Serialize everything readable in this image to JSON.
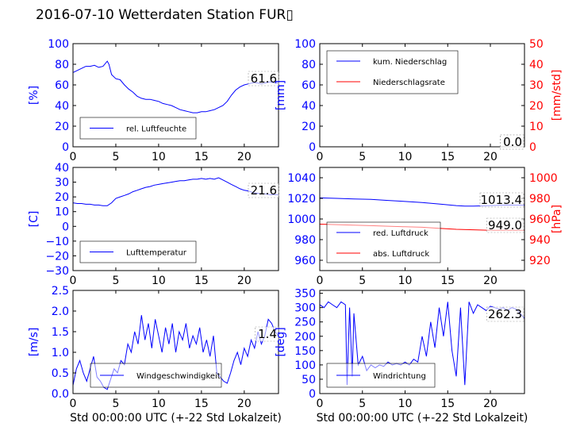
{
  "title": "2016-07-10 Wetterdaten Station FUR▯",
  "colors": {
    "primary": "#0000ff",
    "secondary": "#ff0000",
    "axis": "#000000",
    "light": "#7f7fff"
  },
  "chart_data": [
    {
      "type": "line",
      "panel": "humidity",
      "xlabel": "",
      "ylabel": "[%]",
      "xlim": [
        0,
        24
      ],
      "ylim": [
        0,
        100
      ],
      "xticks": [
        "0",
        "5",
        "10",
        "15",
        "20"
      ],
      "yticks": [
        "0",
        "20",
        "40",
        "60",
        "80",
        "100"
      ],
      "legend_position": "lower-left",
      "series": [
        {
          "name": "rel. Luftfeuchte",
          "axis": "left",
          "color": "#0000ff",
          "x": [
            0,
            0.5,
            1,
            1.5,
            2,
            2.5,
            3,
            3.5,
            4,
            4.2,
            4.5,
            5,
            5.5,
            6,
            6.5,
            7,
            7.5,
            8,
            8.5,
            9,
            9.5,
            10,
            10.5,
            11,
            11.5,
            12,
            12.5,
            13,
            13.5,
            14,
            14.5,
            15,
            15.5,
            16,
            16.5,
            17,
            17.5,
            18,
            18.5,
            19,
            19.5,
            20,
            20.5,
            21,
            21.5,
            22,
            22.5,
            23,
            23.5,
            24
          ],
          "y": [
            72,
            74,
            76,
            78,
            78,
            79,
            77,
            78,
            83,
            80,
            70,
            66,
            65,
            60,
            56,
            53,
            49,
            47,
            46,
            46,
            45,
            44,
            42,
            41,
            40,
            38,
            36,
            35,
            34,
            33,
            33,
            34,
            34,
            35,
            36,
            38,
            40,
            44,
            50,
            55,
            58,
            60,
            61,
            62,
            62,
            61,
            62,
            63,
            62,
            61.6
          ]
        }
      ],
      "annotations": [
        "61.6"
      ]
    },
    {
      "type": "line",
      "panel": "precipitation",
      "xlabel": "",
      "ylabel": "[mm]",
      "y2label": "[mm/std]",
      "xlim": [
        0,
        24
      ],
      "ylim": [
        0,
        100
      ],
      "y2lim": [
        0,
        50
      ],
      "xticks": [
        "0",
        "5",
        "10",
        "15",
        "20"
      ],
      "yticks": [
        "0",
        "20",
        "40",
        "60",
        "80",
        "100"
      ],
      "y2ticks": [
        "0",
        "10",
        "20",
        "30",
        "40",
        "50"
      ],
      "legend_position": "upper-left",
      "series": [
        {
          "name": "kum. Niederschlag",
          "axis": "left",
          "color": "#0000ff",
          "x": [
            0,
            24
          ],
          "y": [
            0,
            0
          ]
        },
        {
          "name": "Niederschlagsrate",
          "axis": "right",
          "color": "#ff0000",
          "x": [
            0,
            24
          ],
          "y": [
            0,
            0
          ]
        }
      ],
      "annotations": [
        "0.0",
        "0.0"
      ]
    },
    {
      "type": "line",
      "panel": "temperature",
      "xlabel": "",
      "ylabel": "[C]",
      "xlim": [
        0,
        24
      ],
      "ylim": [
        -30,
        40
      ],
      "xticks": [
        "0",
        "5",
        "10",
        "15",
        "20"
      ],
      "yticks": [
        "−30",
        "−20",
        "−10",
        "0",
        "10",
        "20",
        "30",
        "40"
      ],
      "legend_position": "lower-left",
      "series": [
        {
          "name": "Lufttemperatur",
          "axis": "left",
          "color": "#0000ff",
          "x": [
            0,
            0.5,
            1,
            1.5,
            2,
            2.5,
            3,
            3.5,
            4,
            4.5,
            5,
            5.5,
            6,
            6.5,
            7,
            7.5,
            8,
            8.5,
            9,
            9.5,
            10,
            10.5,
            11,
            11.5,
            12,
            12.5,
            13,
            13.5,
            14,
            14.5,
            15,
            15.5,
            16,
            16.5,
            17,
            17.5,
            18,
            18.5,
            19,
            19.5,
            20,
            20.5,
            21,
            21.5,
            22,
            22.5,
            23,
            23.5,
            24
          ],
          "y": [
            16,
            15.5,
            15.5,
            15,
            15,
            14.5,
            14.5,
            14,
            14,
            16,
            19,
            20,
            21,
            22,
            23.5,
            24.5,
            25.5,
            26.5,
            27,
            28,
            28.5,
            29,
            29.5,
            30,
            30.5,
            31,
            31,
            31.5,
            32,
            32,
            32.5,
            32,
            32.5,
            32,
            33,
            31.5,
            30,
            28.5,
            27,
            25.5,
            24.5,
            24,
            23,
            22.5,
            22,
            22,
            21.5,
            21.5,
            21.6
          ]
        }
      ],
      "annotations": [
        "21.6"
      ]
    },
    {
      "type": "line",
      "panel": "pressure",
      "xlabel": "",
      "ylabel": "",
      "y2label": "[hPa]",
      "xlim": [
        0,
        24
      ],
      "ylim": [
        950,
        1050
      ],
      "y2lim": [
        910,
        1010
      ],
      "xticks": [
        "0",
        "5",
        "10",
        "15",
        "20"
      ],
      "yticks": [
        "960",
        "980",
        "1000",
        "1020",
        "1040"
      ],
      "y2ticks": [
        "920",
        "940",
        "960",
        "980",
        "1000"
      ],
      "legend_position": "lower-left",
      "series": [
        {
          "name": "red. Luftdruck",
          "axis": "left",
          "color": "#0000ff",
          "x": [
            0,
            2,
            4,
            6,
            8,
            10,
            12,
            14,
            16,
            17,
            18,
            20,
            22,
            24
          ],
          "y": [
            1020.5,
            1020,
            1019.5,
            1019,
            1018,
            1017,
            1016,
            1014.5,
            1013,
            1012.5,
            1012.5,
            1013,
            1013.5,
            1013.4
          ]
        },
        {
          "name": "abs. Luftdruck",
          "axis": "right",
          "color": "#ff0000",
          "x": [
            0,
            2,
            4,
            6,
            8,
            10,
            12,
            14,
            16,
            18,
            20,
            22,
            24
          ],
          "y": [
            955,
            954.5,
            954,
            953.5,
            953,
            952.5,
            952,
            951,
            950,
            949.5,
            949,
            949,
            949.0
          ]
        }
      ],
      "annotations": [
        "1013.4",
        "949.0"
      ]
    },
    {
      "type": "line",
      "panel": "windspeed",
      "xlabel": "Std 00:00:00 UTC (+-22 Std Lokalzeit)",
      "ylabel": "[m/s]",
      "xlim": [
        0,
        24
      ],
      "ylim": [
        0,
        2.5
      ],
      "xticks": [
        "0",
        "5",
        "10",
        "15",
        "20"
      ],
      "yticks": [
        "0.0",
        "0.5",
        "1.0",
        "1.5",
        "2.0",
        "2.5"
      ],
      "legend_position": "lower-center",
      "series": [
        {
          "name": "Windgeschwindigkeit",
          "axis": "left",
          "color": "#0000ff",
          "x": [
            0,
            0.4,
            0.8,
            1.2,
            1.6,
            2,
            2.4,
            2.8,
            3.2,
            3.6,
            4,
            4.4,
            4.8,
            5.2,
            5.6,
            6,
            6.4,
            6.8,
            7.2,
            7.6,
            8,
            8.4,
            8.8,
            9.2,
            9.6,
            10,
            10.4,
            10.8,
            11.2,
            11.6,
            12,
            12.4,
            12.8,
            13.2,
            13.6,
            14,
            14.4,
            14.8,
            15.2,
            15.6,
            16,
            16.4,
            16.8,
            17.2,
            17.6,
            18,
            18.4,
            18.8,
            19.2,
            19.6,
            20,
            20.4,
            20.8,
            21.2,
            21.6,
            22,
            22.4,
            22.8,
            23.2,
            23.6,
            24
          ],
          "y": [
            0.2,
            0.6,
            0.8,
            0.5,
            0.3,
            0.6,
            0.9,
            0.4,
            0.3,
            0.15,
            0.1,
            0.35,
            0.6,
            0.5,
            0.8,
            0.7,
            1.2,
            1.0,
            1.5,
            1.2,
            1.9,
            1.3,
            1.7,
            1.1,
            1.8,
            1.4,
            1.0,
            1.6,
            1.2,
            1.7,
            1.0,
            1.5,
            1.3,
            1.7,
            1.1,
            1.4,
            1.2,
            1.6,
            1.0,
            1.3,
            0.9,
            1.4,
            0.5,
            0.4,
            0.3,
            0.25,
            0.5,
            0.8,
            1.0,
            0.7,
            1.1,
            0.9,
            1.3,
            1.1,
            1.5,
            1.2,
            1.4,
            1.8,
            1.7,
            1.5,
            1.4
          ]
        }
      ],
      "annotations": [
        "1.4"
      ]
    },
    {
      "type": "line",
      "panel": "winddirection",
      "xlabel": "Std 00:00:00 UTC (+-22 Std Lokalzeit)",
      "ylabel": "[deg]",
      "xlim": [
        0,
        24
      ],
      "ylim": [
        0,
        360
      ],
      "xticks": [
        "0",
        "5",
        "10",
        "15",
        "20"
      ],
      "yticks": [
        "0",
        "50",
        "100",
        "150",
        "200",
        "250",
        "300",
        "350"
      ],
      "legend_position": "lower-left",
      "series": [
        {
          "name": "Windrichtung",
          "axis": "left",
          "color": "#0000ff",
          "x": [
            0,
            0.5,
            1,
            1.5,
            2,
            2.5,
            3,
            3.2,
            3.5,
            3.8,
            4,
            4.5,
            5,
            5.5,
            6,
            6.5,
            7,
            7.5,
            8,
            8.5,
            9,
            9.5,
            10,
            10.5,
            11,
            11.5,
            12,
            12.5,
            13,
            13.5,
            14,
            14.5,
            15,
            15.5,
            16,
            16.5,
            17,
            17.5,
            18,
            18.5,
            19,
            19.5,
            20,
            20.5,
            21,
            21.5,
            22,
            22.5,
            23,
            23.5,
            24
          ],
          "y": [
            310,
            300,
            320,
            310,
            300,
            320,
            310,
            30,
            300,
            60,
            280,
            100,
            130,
            80,
            100,
            90,
            100,
            95,
            110,
            100,
            105,
            100,
            110,
            100,
            120,
            110,
            200,
            130,
            250,
            160,
            300,
            200,
            320,
            150,
            60,
            300,
            30,
            320,
            280,
            310,
            300,
            290,
            305,
            300,
            295,
            300,
            290,
            300,
            295,
            280,
            262.3
          ]
        }
      ],
      "annotations": [
        "262.3"
      ]
    }
  ]
}
